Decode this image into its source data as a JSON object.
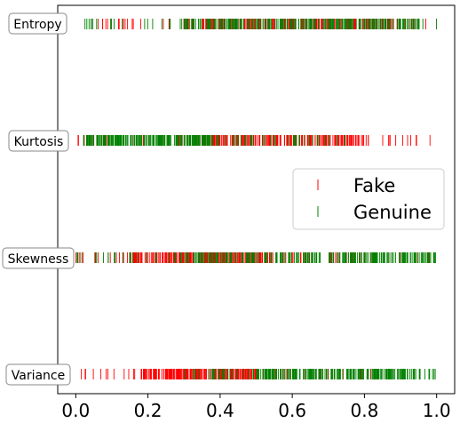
{
  "chart_data": {
    "type": "strip",
    "categories": [
      "Variance",
      "Skewness",
      "Kurtosis",
      "Entropy"
    ],
    "xlim": [
      -0.05,
      1.05
    ],
    "x_ticks": [
      "0.0",
      "0.2",
      "0.4",
      "0.6",
      "0.8",
      "1.0"
    ],
    "x_tick_values": [
      0.0,
      0.2,
      0.4,
      0.6,
      0.8,
      1.0
    ],
    "legend": {
      "position": "right",
      "entries": [
        "Fake",
        "Genuine"
      ]
    },
    "colors": {
      "Fake": "#ff0000",
      "Genuine": "#008000"
    },
    "series": [
      {
        "name": "Fake",
        "distributions": {
          "Variance": {
            "range": [
              0.0,
              0.85
            ],
            "dense": [
              0.18,
              0.5
            ]
          },
          "Skewness": {
            "range": [
              0.0,
              0.98
            ],
            "dense": [
              0.15,
              0.55
            ]
          },
          "Kurtosis": {
            "range": [
              0.0,
              1.0
            ],
            "dense": [
              0.35,
              0.8
            ]
          },
          "Entropy": {
            "range": [
              0.05,
              0.98
            ],
            "dense": [
              0.3,
              0.9
            ]
          }
        }
      },
      {
        "name": "Genuine",
        "distributions": {
          "Variance": {
            "range": [
              0.3,
              1.0
            ],
            "dense": [
              0.5,
              0.92
            ]
          },
          "Skewness": {
            "range": [
              0.0,
              1.0
            ],
            "dense": [
              0.3,
              1.0
            ]
          },
          "Kurtosis": {
            "range": [
              0.0,
              0.75
            ],
            "dense": [
              0.02,
              0.38
            ]
          },
          "Entropy": {
            "range": [
              0.0,
              1.0
            ],
            "dense": [
              0.3,
              0.95
            ]
          }
        }
      }
    ]
  }
}
